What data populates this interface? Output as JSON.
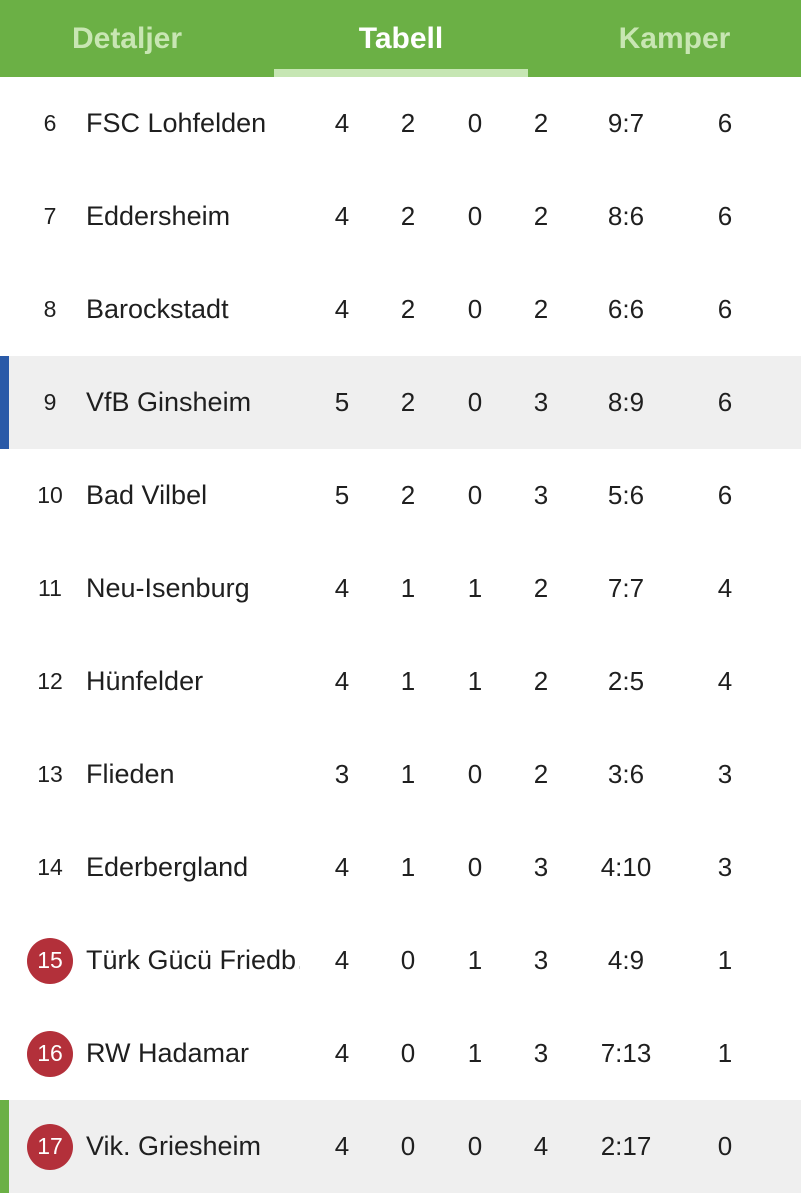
{
  "tabs": {
    "details": "Detaljer",
    "table": "Tabell",
    "matches": "Kamper"
  },
  "colors": {
    "header_green": "#6bb045",
    "relegation_badge": "#b3303a",
    "highlight_row": "#efefef",
    "marker_blue": "#2a5aa8",
    "marker_green": "#6bb045"
  },
  "rows": [
    {
      "pos": "6",
      "team": "FSC Lohfelden",
      "played": "4",
      "won": "2",
      "drawn": "0",
      "lost": "2",
      "goals": "9:7",
      "points": "6"
    },
    {
      "pos": "7",
      "team": "Eddersheim",
      "played": "4",
      "won": "2",
      "drawn": "0",
      "lost": "2",
      "goals": "8:6",
      "points": "6"
    },
    {
      "pos": "8",
      "team": "Barockstadt",
      "played": "4",
      "won": "2",
      "drawn": "0",
      "lost": "2",
      "goals": "6:6",
      "points": "6"
    },
    {
      "pos": "9",
      "team": "VfB Ginsheim",
      "played": "5",
      "won": "2",
      "drawn": "0",
      "lost": "3",
      "goals": "8:9",
      "points": "6"
    },
    {
      "pos": "10",
      "team": "Bad Vilbel",
      "played": "5",
      "won": "2",
      "drawn": "0",
      "lost": "3",
      "goals": "5:6",
      "points": "6"
    },
    {
      "pos": "11",
      "team": "Neu-Isenburg",
      "played": "4",
      "won": "1",
      "drawn": "1",
      "lost": "2",
      "goals": "7:7",
      "points": "4"
    },
    {
      "pos": "12",
      "team": "Hünfelder",
      "played": "4",
      "won": "1",
      "drawn": "1",
      "lost": "2",
      "goals": "2:5",
      "points": "4"
    },
    {
      "pos": "13",
      "team": "Flieden",
      "played": "3",
      "won": "1",
      "drawn": "0",
      "lost": "2",
      "goals": "3:6",
      "points": "3"
    },
    {
      "pos": "14",
      "team": "Ederbergland",
      "played": "4",
      "won": "1",
      "drawn": "0",
      "lost": "3",
      "goals": "4:10",
      "points": "3"
    },
    {
      "pos": "15",
      "team": "Türk Gücü Friedb…",
      "played": "4",
      "won": "0",
      "drawn": "1",
      "lost": "3",
      "goals": "4:9",
      "points": "1"
    },
    {
      "pos": "16",
      "team": "RW Hadamar",
      "played": "4",
      "won": "0",
      "drawn": "1",
      "lost": "3",
      "goals": "7:13",
      "points": "1"
    },
    {
      "pos": "17",
      "team": "Vik. Griesheim",
      "played": "4",
      "won": "0",
      "drawn": "0",
      "lost": "4",
      "goals": "2:17",
      "points": "0"
    }
  ]
}
